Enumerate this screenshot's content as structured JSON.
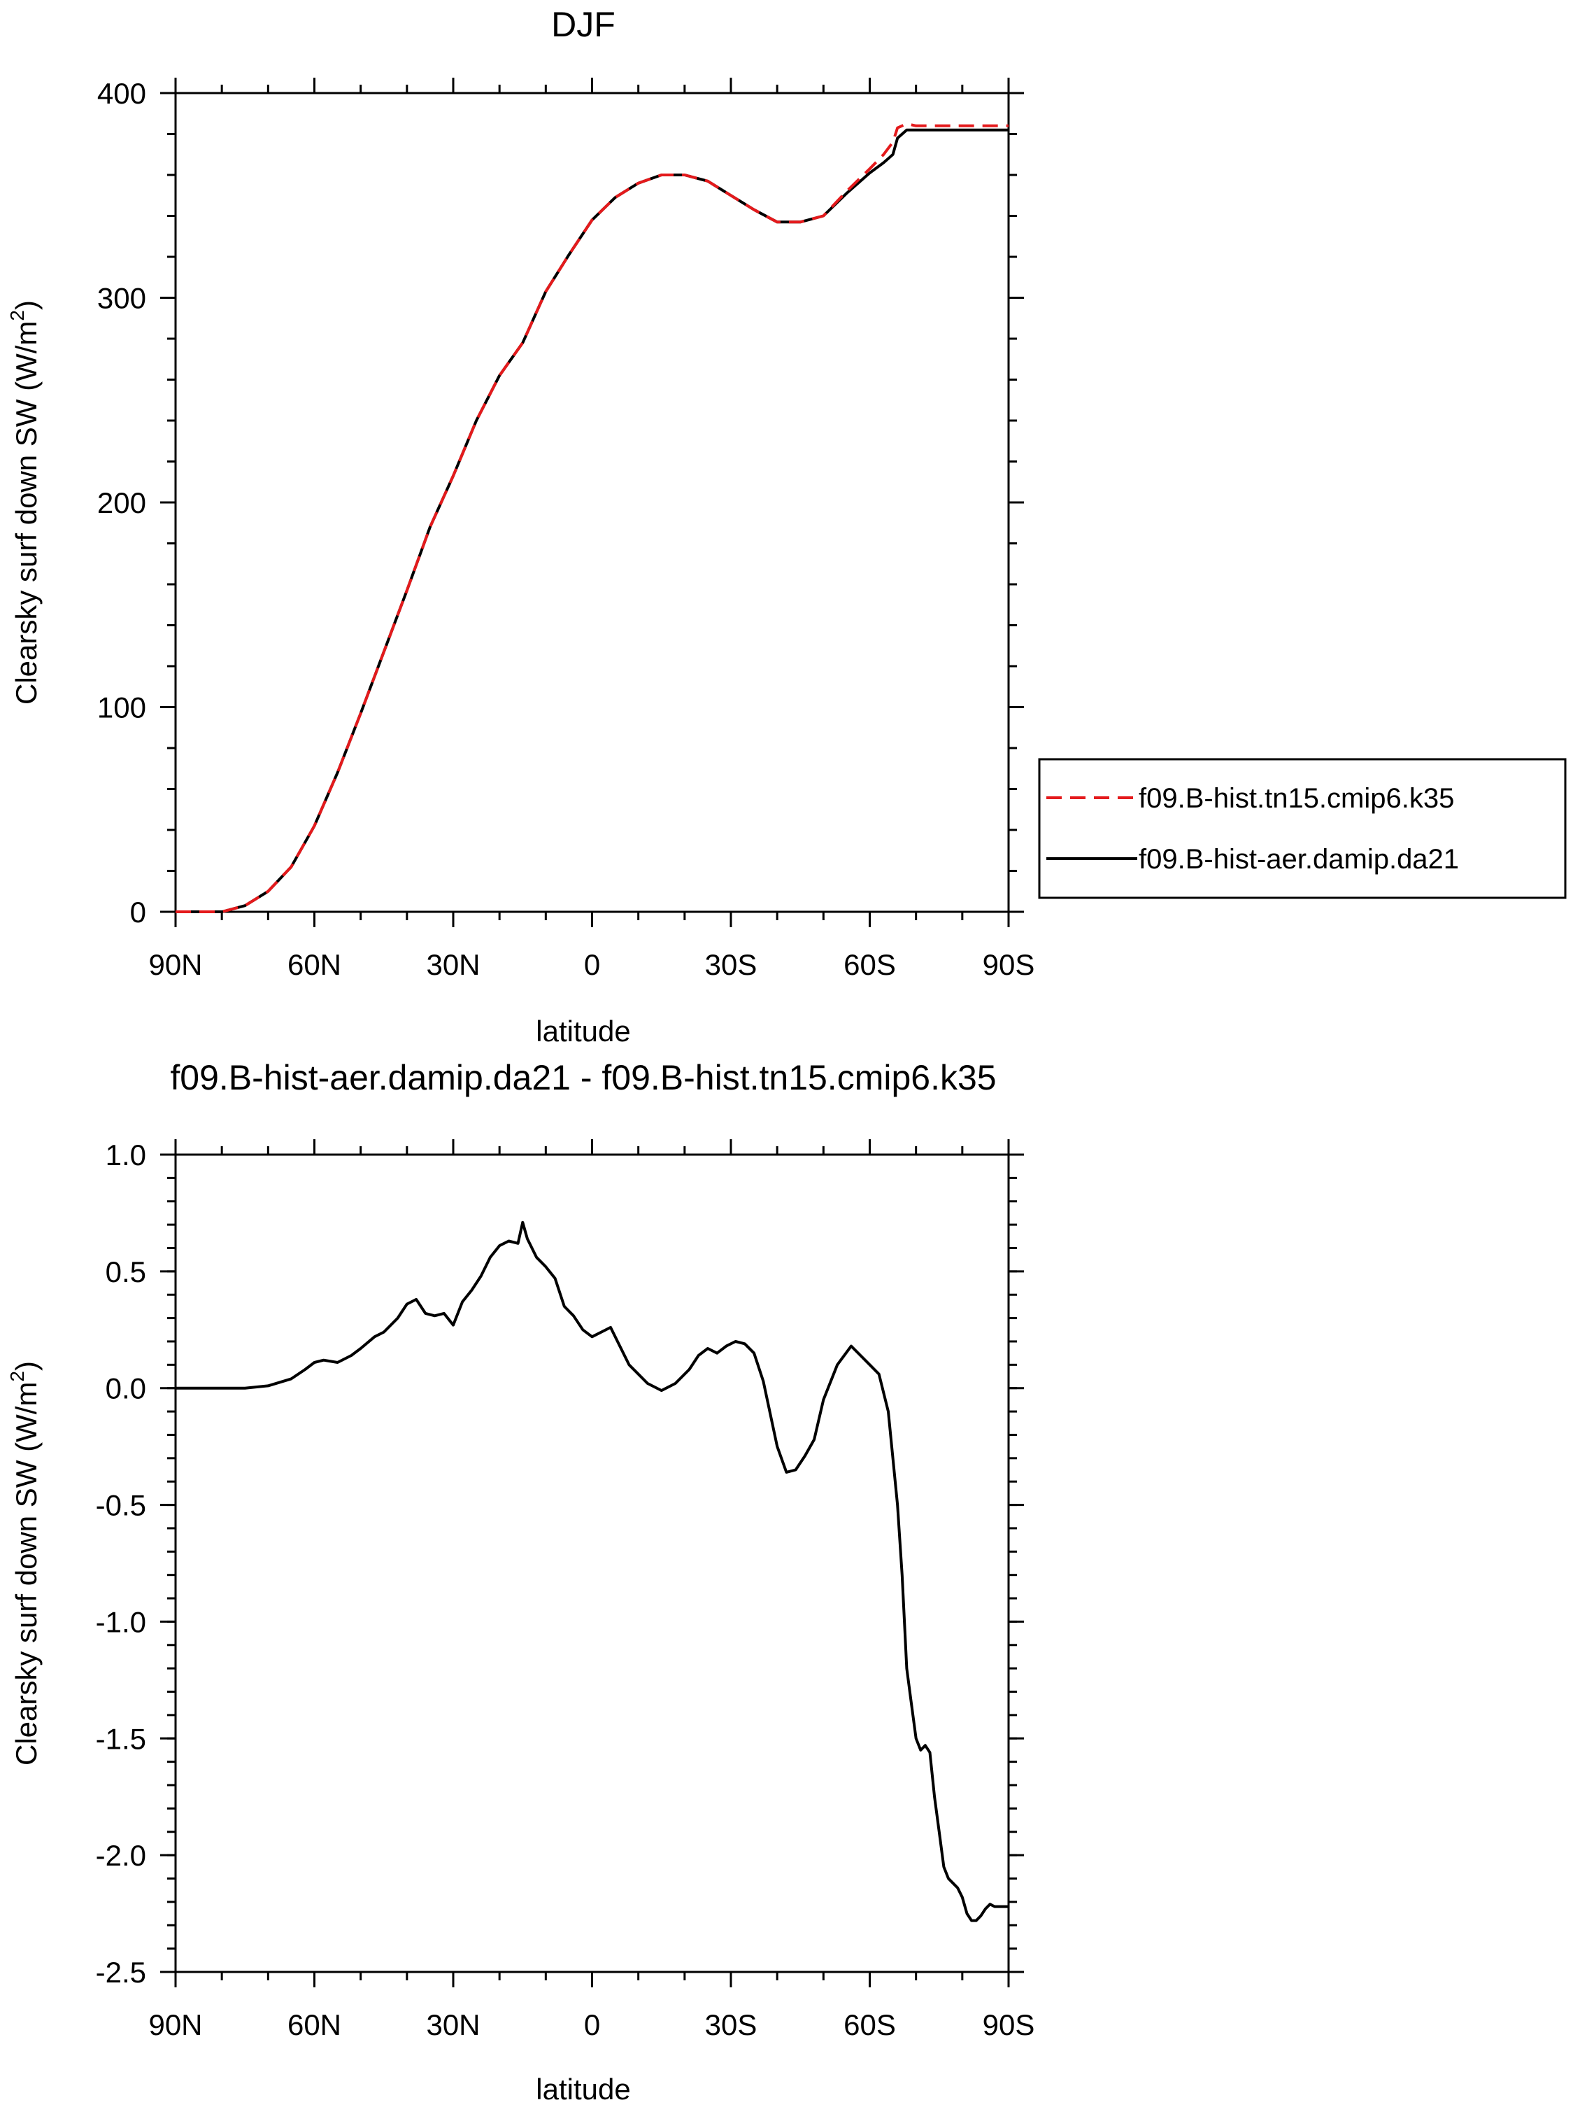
{
  "chart_data": [
    {
      "type": "line",
      "title": "DJF",
      "xlabel": "latitude",
      "ylabel": "Clearsky surf down SW (W/m²)",
      "ylabel_main": "Clearsky surf down SW (W/m",
      "ylabel_sup": "2",
      "ylabel_end": ")",
      "xlim": [
        90,
        -90
      ],
      "ylim": [
        0,
        400
      ],
      "xticks": [
        90,
        60,
        30,
        0,
        -30,
        -60,
        -90
      ],
      "xtick_labels": [
        "90N",
        "60N",
        "30N",
        "0",
        "30S",
        "60S",
        "90S"
      ],
      "yticks": [
        0,
        100,
        200,
        300,
        400
      ],
      "ytick_labels": [
        "0",
        "100",
        "200",
        "300",
        "400"
      ],
      "legend": {
        "placement": "right",
        "entries": [
          "f09.B-hist.tn15.cmip6.k35",
          "f09.B-hist-aer.damip.da21"
        ]
      },
      "series": [
        {
          "name": "f09.B-hist.tn15.cmip6.k35",
          "color": "#e41a1c",
          "dash": "dashed",
          "x": [
            90,
            85,
            80,
            75,
            70,
            65,
            60,
            55,
            50,
            45,
            40,
            35,
            30,
            25,
            20,
            15,
            10,
            5,
            0,
            -5,
            -10,
            -15,
            -20,
            -25,
            -30,
            -35,
            -40,
            -45,
            -50,
            -55,
            -60,
            -63,
            -65,
            -66,
            -68,
            -70,
            -75,
            -80,
            -85,
            -88,
            -90
          ],
          "y": [
            0,
            0,
            0,
            3,
            10,
            22,
            42,
            68,
            97,
            127,
            157,
            188,
            213,
            240,
            262,
            278,
            303,
            321,
            338,
            349,
            356,
            360,
            360,
            357,
            350,
            343,
            337,
            337,
            340,
            352,
            363,
            370,
            376,
            383,
            385,
            384,
            384,
            384,
            384,
            384,
            384
          ]
        },
        {
          "name": "f09.B-hist-aer.damip.da21",
          "color": "#000000",
          "dash": "solid",
          "x": [
            90,
            85,
            80,
            75,
            70,
            65,
            60,
            55,
            50,
            45,
            40,
            35,
            30,
            25,
            20,
            15,
            10,
            5,
            0,
            -5,
            -10,
            -15,
            -20,
            -25,
            -30,
            -35,
            -40,
            -45,
            -50,
            -55,
            -60,
            -63,
            -65,
            -66,
            -68,
            -70,
            -75,
            -80,
            -85,
            -88,
            -90
          ],
          "y": [
            0,
            0,
            0,
            3,
            10,
            22,
            42,
            68,
            97,
            127,
            157,
            188,
            213,
            240,
            262,
            278,
            303,
            321,
            338,
            349,
            356,
            360,
            360,
            357,
            350,
            343,
            337,
            337,
            340,
            351,
            361,
            366,
            370,
            378,
            382,
            382,
            382,
            382,
            382,
            382,
            382
          ]
        }
      ]
    },
    {
      "type": "line",
      "title": "f09.B-hist-aer.damip.da21 - f09.B-hist.tn15.cmip6.k35",
      "xlabel": "latitude",
      "ylabel": "Clearsky surf down SW (W/m²)",
      "ylabel_main": "Clearsky surf down SW (W/m",
      "ylabel_sup": "2",
      "ylabel_end": ")",
      "xlim": [
        90,
        -90
      ],
      "ylim": [
        -2.5,
        1.0
      ],
      "xticks": [
        90,
        60,
        30,
        0,
        -30,
        -60,
        -90
      ],
      "xtick_labels": [
        "90N",
        "60N",
        "30N",
        "0",
        "30S",
        "60S",
        "90S"
      ],
      "yticks": [
        1.0,
        0.5,
        0.0,
        -0.5,
        -1.0,
        -1.5,
        -2.0,
        -2.5
      ],
      "ytick_labels": [
        "1.0",
        "0.5",
        "0.0",
        "-0.5",
        "-1.0",
        "-1.5",
        "-2.0",
        "-2.5"
      ],
      "series": [
        {
          "name": "f09.B-hist-aer.damip.da21 - f09.B-hist.tn15.cmip6.k35",
          "color": "#000000",
          "dash": "solid",
          "x": [
            90,
            85,
            80,
            75,
            70,
            65,
            62,
            60,
            58,
            55,
            52,
            50,
            47,
            45,
            42,
            40,
            38,
            36,
            34,
            32,
            30,
            28,
            26,
            24,
            22,
            20,
            18,
            16,
            15,
            14,
            12,
            10,
            8,
            6,
            4,
            2,
            0,
            -2,
            -4,
            -6,
            -8,
            -10,
            -12,
            -15,
            -18,
            -21,
            -23,
            -25,
            -27,
            -29,
            -31,
            -33,
            -35,
            -37,
            -40,
            -42,
            -44,
            -46,
            -48,
            -50,
            -53,
            -56,
            -58,
            -60,
            -62,
            -64,
            -66,
            -67,
            -68,
            -69,
            -70,
            -71,
            -72,
            -73,
            -74,
            -75,
            -76,
            -77,
            -78,
            -79,
            -80,
            -81,
            -82,
            -83,
            -84,
            -85,
            -86,
            -87,
            -88,
            -89,
            -90
          ],
          "y": [
            0.0,
            0.0,
            0.0,
            0.0,
            0.01,
            0.04,
            0.08,
            0.11,
            0.12,
            0.11,
            0.14,
            0.17,
            0.22,
            0.24,
            0.3,
            0.36,
            0.38,
            0.32,
            0.31,
            0.32,
            0.27,
            0.37,
            0.42,
            0.48,
            0.56,
            0.61,
            0.63,
            0.62,
            0.71,
            0.64,
            0.56,
            0.52,
            0.47,
            0.35,
            0.31,
            0.25,
            0.22,
            0.24,
            0.26,
            0.18,
            0.1,
            0.06,
            0.02,
            -0.01,
            0.02,
            0.08,
            0.14,
            0.17,
            0.15,
            0.18,
            0.2,
            0.19,
            0.15,
            0.03,
            -0.25,
            -0.36,
            -0.35,
            -0.29,
            -0.22,
            -0.05,
            0.1,
            0.18,
            0.14,
            0.1,
            0.06,
            -0.1,
            -0.5,
            -0.8,
            -1.2,
            -1.35,
            -1.5,
            -1.55,
            -1.53,
            -1.56,
            -1.75,
            -1.9,
            -2.05,
            -2.1,
            -2.12,
            -2.14,
            -2.18,
            -2.25,
            -2.28,
            -2.28,
            -2.26,
            -2.23,
            -2.21,
            -2.22,
            -2.22,
            -2.22,
            -2.22
          ]
        }
      ]
    }
  ]
}
